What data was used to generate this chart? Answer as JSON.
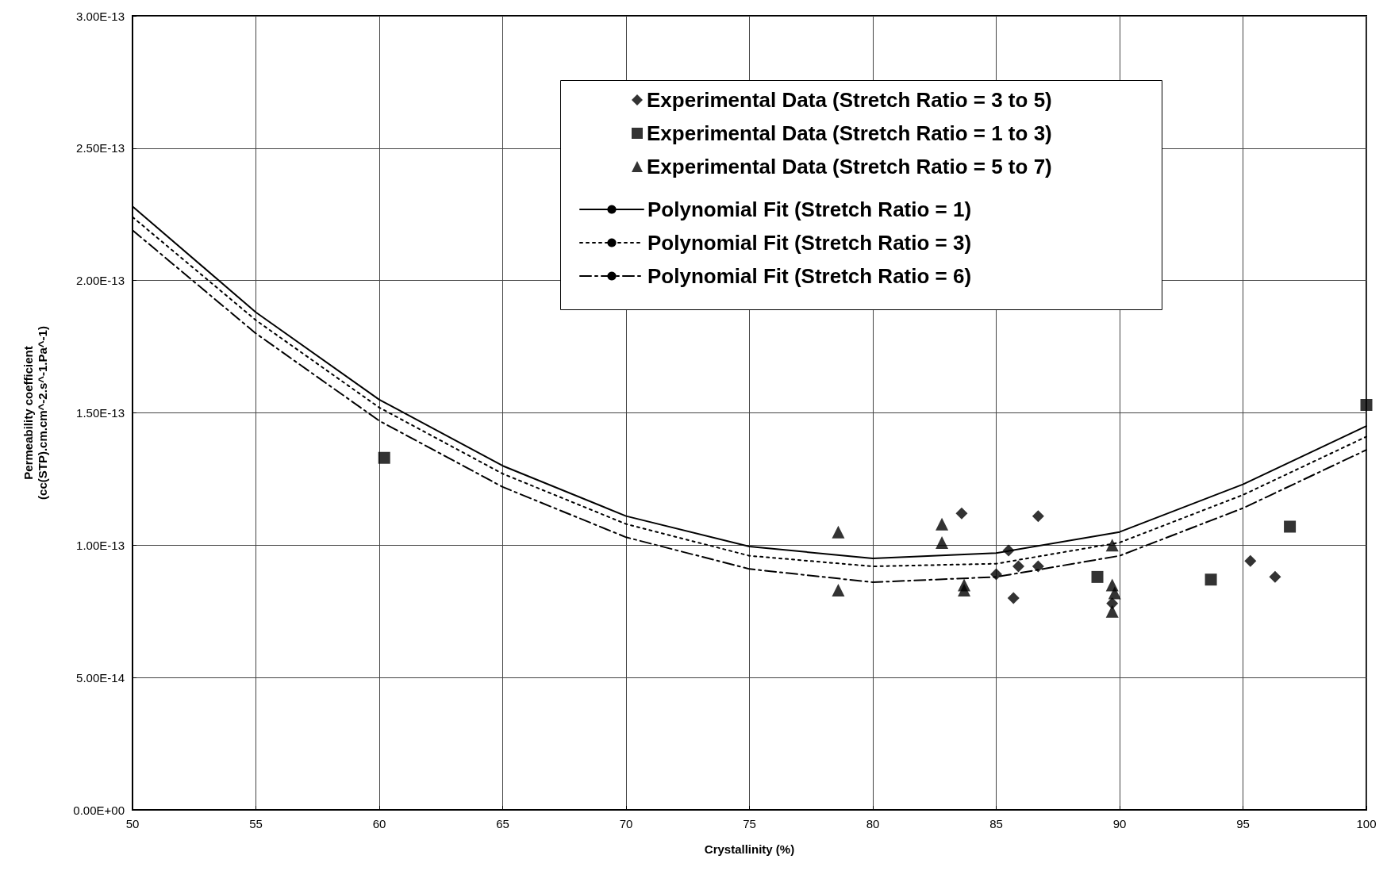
{
  "chart_data": {
    "type": "scatter",
    "xlabel": "Crystallinity (%)",
    "ylabel": "Permeability coefficient\n(cc(STP).cm.cm^-2.s^-1.Pa^-1)",
    "xlim": [
      50,
      100
    ],
    "xticks": [
      50,
      55,
      60,
      65,
      70,
      75,
      80,
      85,
      90,
      95,
      100
    ],
    "ylim": [
      0,
      3e-13
    ],
    "yticks": [
      {
        "value": 0,
        "label": "0.00E+00"
      },
      {
        "value": 5e-14,
        "label": "5.00E-14"
      },
      {
        "value": 1e-13,
        "label": "1.00E-13"
      },
      {
        "value": 1.5e-13,
        "label": "1.50E-13"
      },
      {
        "value": 2e-13,
        "label": "2.00E-13"
      },
      {
        "value": 2.5e-13,
        "label": "2.50E-13"
      },
      {
        "value": 3e-13,
        "label": "3.00E-13"
      }
    ],
    "grid": true,
    "legend": "top right",
    "series": [
      {
        "name": "Experimental Data (Stretch Ratio = 3 to 5)",
        "color": "#000000",
        "marker": "diamond",
        "x": [
          83.6,
          86.7,
          85.5,
          85.0,
          85.9,
          86.7,
          85.7,
          89.7,
          95.3,
          96.3
        ],
        "values": [
          1.12e-13,
          1.11e-13,
          9.8e-14,
          8.9e-14,
          9.2e-14,
          9.2e-14,
          8e-14,
          7.8e-14,
          9.4e-14,
          8.8e-14
        ]
      },
      {
        "name": "Experimental Data (Stretch Ratio = 1 to 3)",
        "color": "#000000",
        "marker": "square",
        "x": [
          60.2,
          89.1,
          93.7,
          96.9,
          100
        ],
        "values": [
          1.33e-13,
          8.8e-14,
          8.7e-14,
          1.07e-13,
          1.53e-13
        ]
      },
      {
        "name": "Experimental Data (Stretch Ratio = 5 to 7)",
        "color": "#000000",
        "marker": "triangle",
        "x": [
          78.6,
          78.6,
          82.8,
          82.8,
          83.7,
          83.7,
          89.7,
          89.7,
          89.8,
          89.7
        ],
        "values": [
          1.05e-13,
          8.3e-14,
          1.08e-13,
          1.01e-13,
          8.5e-14,
          8.3e-14,
          1e-13,
          8.5e-14,
          8.2e-14,
          7.5e-14
        ]
      },
      {
        "name": "Polynomial Fit (Stretch Ratio = 1)",
        "type": "line",
        "color": "#000000",
        "marker": "none",
        "line_style": "solid",
        "x": [
          50,
          55,
          60,
          65,
          70,
          75,
          80,
          85,
          90,
          95,
          100
        ],
        "values": [
          2.28e-13,
          1.88e-13,
          1.55e-13,
          1.3e-13,
          1.11e-13,
          9.95e-14,
          9.5e-14,
          9.7e-14,
          1.05e-13,
          1.23e-13,
          1.45e-13
        ]
      },
      {
        "name": "Polynomial Fit (Stretch Ratio = 3)",
        "type": "line",
        "color": "#000000",
        "marker": "none",
        "line_style": "dotted",
        "x": [
          50,
          55,
          60,
          65,
          70,
          75,
          80,
          85,
          90,
          95,
          100
        ],
        "values": [
          2.24e-13,
          1.85e-13,
          1.52e-13,
          1.27e-13,
          1.08e-13,
          9.6e-14,
          9.2e-14,
          9.3e-14,
          1.01e-13,
          1.19e-13,
          1.41e-13
        ]
      },
      {
        "name": "Polynomial Fit (Stretch Ratio = 6)",
        "type": "line",
        "color": "#000000",
        "marker": "none",
        "line_style": "dashed",
        "x": [
          50,
          55,
          60,
          65,
          70,
          75,
          80,
          85,
          90,
          95,
          100
        ],
        "values": [
          2.19e-13,
          1.8e-13,
          1.47e-13,
          1.22e-13,
          1.03e-13,
          9.1e-14,
          8.6e-14,
          8.8e-14,
          9.6e-14,
          1.14e-13,
          1.36e-13
        ]
      }
    ]
  }
}
